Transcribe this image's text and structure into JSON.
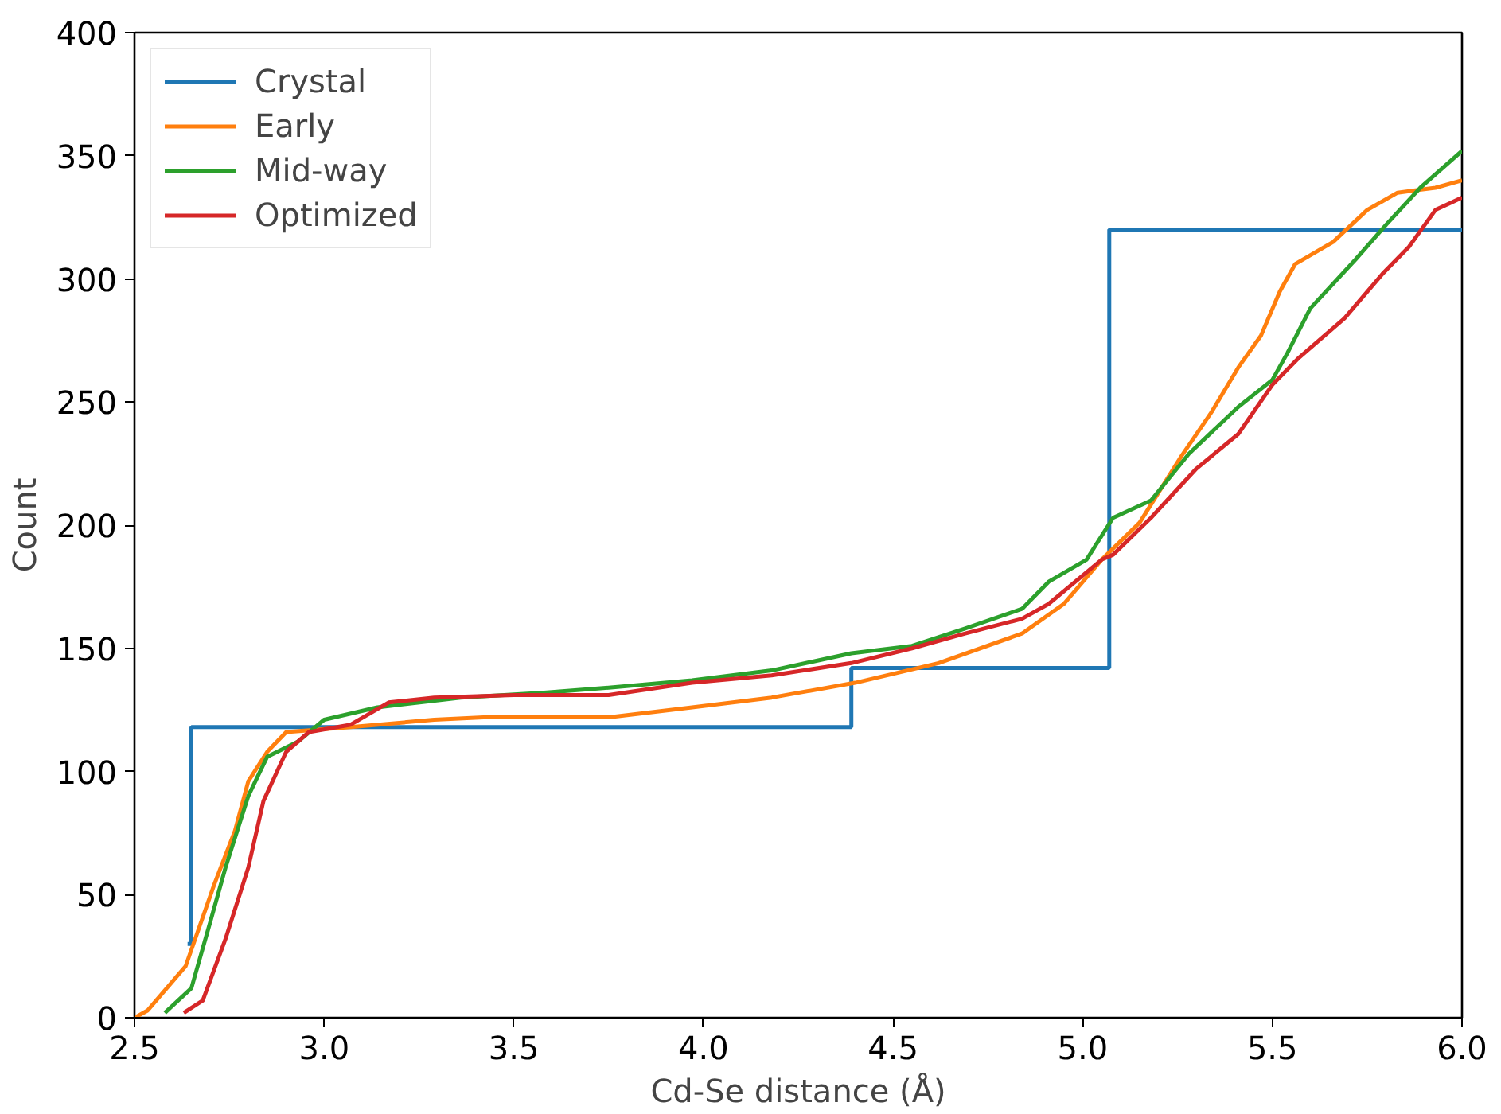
{
  "chart_data": {
    "type": "line",
    "xlabel": "Cd-Se distance (Å)",
    "ylabel": "Count",
    "xlim": [
      2.5,
      6.0
    ],
    "ylim": [
      0,
      400
    ],
    "xticks": [
      2.5,
      {
        "value": 3,
        "label": "3.0"
      },
      3.5,
      {
        "value": 4,
        "label": "4.0"
      },
      4.5,
      {
        "value": 5,
        "label": "5.0"
      },
      5.5,
      {
        "value": 6,
        "label": "6.0"
      }
    ],
    "yticks": [
      0,
      50,
      100,
      150,
      200,
      250,
      300,
      350,
      400
    ],
    "grid": false,
    "legend": "top left",
    "marker": "none",
    "line_style": "solid",
    "series": [
      {
        "name": "Crystal",
        "color": "#1f77b4",
        "type": "step",
        "x": [
          2.64,
          2.65,
          4.39,
          5.07,
          6.0
        ],
        "values": [
          30,
          118,
          142,
          320,
          320
        ]
      },
      {
        "name": "Early",
        "color": "#ff7f0e",
        "x": [
          2.5,
          2.535,
          2.635,
          2.71,
          2.765,
          2.8,
          2.85,
          2.9,
          3.07,
          3.29,
          3.42,
          3.75,
          3.97,
          4.18,
          4.4,
          4.62,
          4.84,
          4.95,
          5.05,
          5.15,
          5.26,
          5.34,
          5.41,
          5.47,
          5.52,
          5.56,
          5.66,
          5.75,
          5.83,
          5.93,
          6.0
        ],
        "values": [
          0,
          3,
          21,
          54,
          76,
          96,
          108,
          116,
          118,
          121,
          122,
          122,
          126,
          130,
          136,
          144,
          156,
          168,
          186,
          201,
          228,
          246,
          264,
          277,
          295,
          306,
          315,
          328,
          335,
          337,
          340
        ]
      },
      {
        "name": "Mid-way",
        "color": "#2ca02c",
        "x": [
          2.58,
          2.65,
          2.7,
          2.74,
          2.8,
          2.85,
          2.93,
          3.0,
          3.14,
          3.36,
          3.58,
          3.75,
          3.97,
          4.18,
          4.39,
          4.55,
          4.69,
          4.84,
          4.91,
          5.01,
          5.08,
          5.18,
          5.28,
          5.41,
          5.5,
          5.54,
          5.6,
          5.72,
          5.8,
          5.89,
          6.0
        ],
        "values": [
          2,
          12,
          39,
          61,
          90,
          106,
          112,
          121,
          126,
          130,
          132,
          134,
          137,
          141,
          148,
          151,
          158,
          166,
          177,
          186,
          203,
          210,
          229,
          248,
          259,
          270,
          288,
          308,
          322,
          337,
          352
        ]
      },
      {
        "name": "Optimized",
        "color": "#d62728",
        "x": [
          2.63,
          2.68,
          2.74,
          2.8,
          2.84,
          2.9,
          2.96,
          3.07,
          3.17,
          3.29,
          3.5,
          3.75,
          3.97,
          4.18,
          4.39,
          4.55,
          4.69,
          4.84,
          4.91,
          5.05,
          5.08,
          5.18,
          5.3,
          5.41,
          5.5,
          5.57,
          5.69,
          5.79,
          5.86,
          5.93,
          6.0
        ],
        "values": [
          2,
          7,
          32,
          61,
          88,
          108,
          116,
          119,
          128,
          130,
          131,
          131,
          136,
          139,
          144,
          150,
          156,
          162,
          168,
          186,
          188,
          203,
          223,
          237,
          257,
          268,
          284,
          302,
          313,
          328,
          333
        ]
      }
    ]
  }
}
